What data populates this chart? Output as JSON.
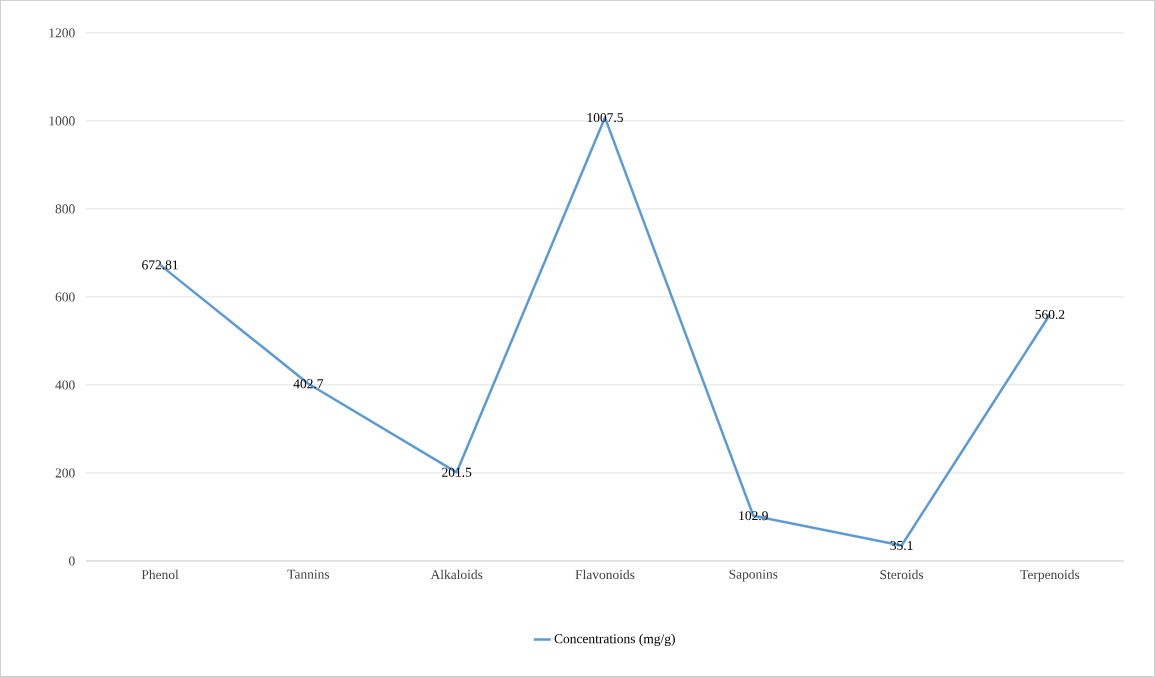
{
  "chart_data": {
    "type": "line",
    "categories": [
      "Phenol",
      "Tannins",
      "Alkaloids",
      "Flavonoids",
      "Saponins",
      "Steroids",
      "Terpenoids"
    ],
    "series": [
      {
        "name": "Concentrations (mg/g)",
        "color": "#5b9bd5",
        "values": [
          672.81,
          402.7,
          201.5,
          1007.5,
          102.9,
          35.1,
          560.2
        ]
      }
    ],
    "ylim": [
      0,
      1200
    ],
    "yticks": [
      0,
      200,
      400,
      600,
      800,
      1000,
      1200
    ],
    "grid": "y",
    "legend": "bottom",
    "data_labels": true,
    "marker": "none",
    "line_style": "solid"
  }
}
